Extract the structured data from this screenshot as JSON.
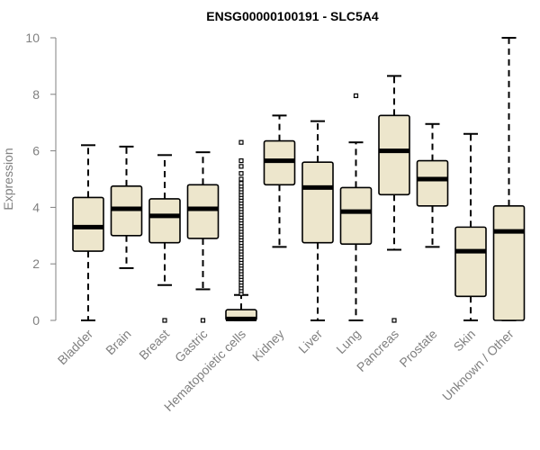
{
  "chart_data": {
    "type": "boxplot",
    "title": "ENSG00000100191 - SLC5A4",
    "xlabel": "",
    "ylabel": "Expression",
    "ylim": [
      0,
      10
    ],
    "yticks": [
      0,
      2,
      4,
      6,
      8,
      10
    ],
    "colors": {
      "box_fill": "#ede6cc",
      "stroke": "#000000",
      "axis": "#808080"
    },
    "categories": [
      "Bladder",
      "Brain",
      "Breast",
      "Gastric",
      "Hematopoietic cells",
      "Kidney",
      "Liver",
      "Lung",
      "Pancreas",
      "Prostate",
      "Skin",
      "Unknown / Other"
    ],
    "boxes": [
      {
        "label": "Bladder",
        "whisker_low": 0.0,
        "q1": 2.45,
        "median": 3.3,
        "q3": 4.35,
        "whisker_high": 6.2,
        "outliers": []
      },
      {
        "label": "Brain",
        "whisker_low": 1.85,
        "q1": 3.0,
        "median": 3.95,
        "q3": 4.75,
        "whisker_high": 6.15,
        "outliers": []
      },
      {
        "label": "Breast",
        "whisker_low": 1.25,
        "q1": 2.75,
        "median": 3.7,
        "q3": 4.3,
        "whisker_high": 5.85,
        "outliers": [
          0.0
        ]
      },
      {
        "label": "Gastric",
        "whisker_low": 1.1,
        "q1": 2.9,
        "median": 3.95,
        "q3": 4.8,
        "whisker_high": 5.95,
        "outliers": [
          0.0
        ]
      },
      {
        "label": "Hematopoietic cells",
        "whisker_low": 0.0,
        "q1": 0.0,
        "median": 0.05,
        "q3": 0.38,
        "whisker_high": 0.9,
        "outliers": [
          0.95,
          1.05,
          1.15,
          1.25,
          1.35,
          1.45,
          1.55,
          1.65,
          1.75,
          1.85,
          1.95,
          2.05,
          2.15,
          2.25,
          2.35,
          2.45,
          2.55,
          2.65,
          2.75,
          2.85,
          2.95,
          3.05,
          3.15,
          3.25,
          3.35,
          3.45,
          3.55,
          3.65,
          3.75,
          3.85,
          3.95,
          4.05,
          4.15,
          4.25,
          4.35,
          4.45,
          4.55,
          4.65,
          4.75,
          4.85,
          5.0,
          5.2,
          5.45,
          5.65,
          6.3
        ]
      },
      {
        "label": "Kidney",
        "whisker_low": 2.6,
        "q1": 4.8,
        "median": 5.65,
        "q3": 6.35,
        "whisker_high": 7.25,
        "outliers": []
      },
      {
        "label": "Liver",
        "whisker_low": 0.0,
        "q1": 2.75,
        "median": 4.7,
        "q3": 5.6,
        "whisker_high": 7.05,
        "outliers": []
      },
      {
        "label": "Lung",
        "whisker_low": 0.0,
        "q1": 2.7,
        "median": 3.85,
        "q3": 4.7,
        "whisker_high": 6.3,
        "outliers": [
          7.95
        ]
      },
      {
        "label": "Pancreas",
        "whisker_low": 2.5,
        "q1": 4.45,
        "median": 6.0,
        "q3": 7.25,
        "whisker_high": 8.65,
        "outliers": [
          0.0
        ]
      },
      {
        "label": "Prostate",
        "whisker_low": 2.6,
        "q1": 4.05,
        "median": 5.0,
        "q3": 5.65,
        "whisker_high": 6.95,
        "outliers": []
      },
      {
        "label": "Skin",
        "whisker_low": 0.0,
        "q1": 0.85,
        "median": 2.45,
        "q3": 3.3,
        "whisker_high": 6.6,
        "outliers": []
      },
      {
        "label": "Unknown / Other",
        "whisker_low": 0.0,
        "q1": 0.0,
        "median": 3.15,
        "q3": 4.05,
        "whisker_high": 10.0,
        "outliers": []
      }
    ]
  }
}
